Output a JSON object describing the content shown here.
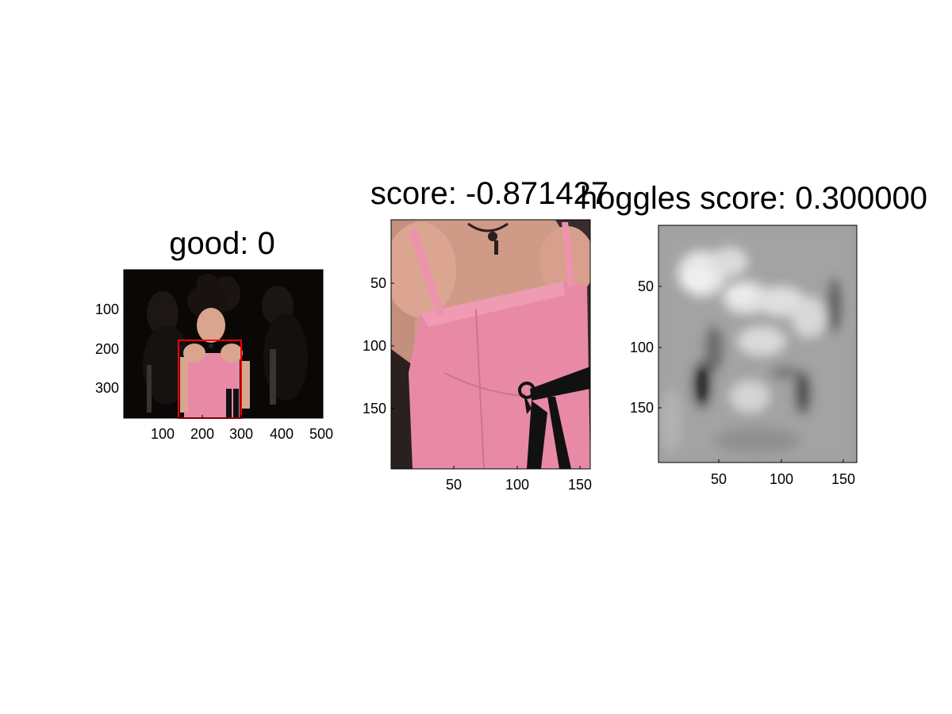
{
  "figure": {
    "panels": [
      {
        "id": "overview",
        "title": "good: 0",
        "x_ticks": [
          "100",
          "200",
          "300",
          "400",
          "500"
        ],
        "y_ticks": [
          "100",
          "200",
          "300"
        ],
        "highlight_box_color": "#ff0000"
      },
      {
        "id": "crop",
        "title": "score: -0.871427",
        "x_ticks": [
          "50",
          "100",
          "150"
        ],
        "y_ticks": [
          "50",
          "100",
          "150"
        ]
      },
      {
        "id": "hoggles",
        "title": "hoggles score: 0.300000",
        "x_ticks": [
          "50",
          "100",
          "150"
        ],
        "y_ticks": [
          "50",
          "100",
          "150"
        ]
      }
    ]
  },
  "colors": {
    "background": "#ffffff",
    "dress_pink": "#e88aa6",
    "ribbon": "#111111",
    "skin": "#d9a58e",
    "hair": "#1a1210",
    "box": "#ff0000"
  }
}
